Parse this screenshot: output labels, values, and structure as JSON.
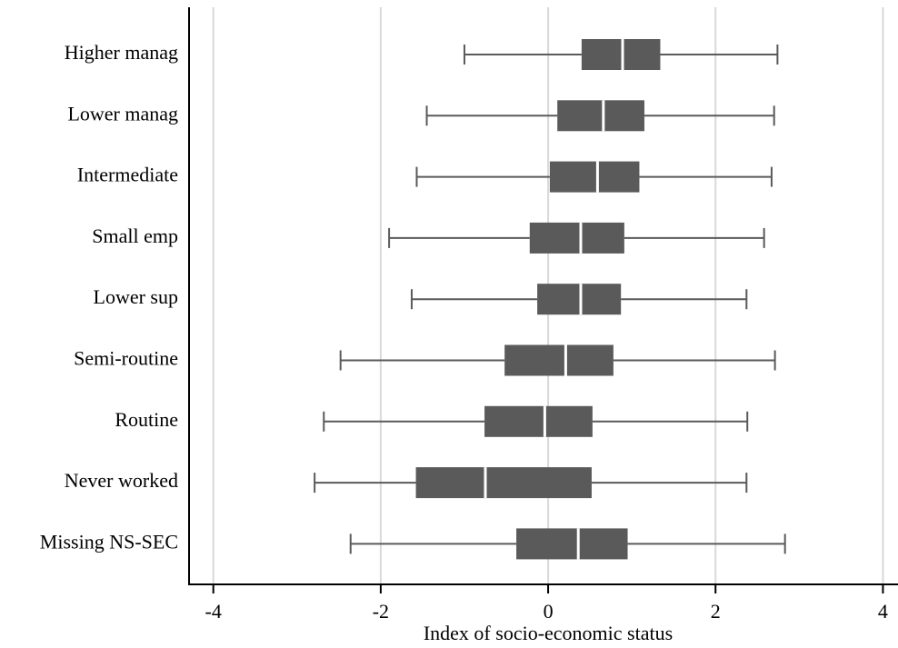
{
  "chart_data": {
    "type": "box",
    "x_label": "Index of socio-economic status",
    "categories": [
      "Higher manag",
      "Lower manag",
      "Intermediate",
      "Small emp",
      "Lower sup",
      "Semi-routine",
      "Routine",
      "Never worked",
      "Missing NS-SEC"
    ],
    "whisker_low": [
      -1.0,
      -1.45,
      -1.57,
      -1.9,
      -1.63,
      -2.48,
      -2.68,
      -2.79,
      -2.36
    ],
    "q1": [
      0.4,
      0.11,
      0.02,
      -0.22,
      -0.13,
      -0.52,
      -0.76,
      -1.58,
      -0.38
    ],
    "median": [
      0.89,
      0.66,
      0.59,
      0.39,
      0.39,
      0.21,
      -0.04,
      -0.75,
      0.36
    ],
    "q3": [
      1.34,
      1.15,
      1.09,
      0.91,
      0.87,
      0.78,
      0.53,
      0.52,
      0.95
    ],
    "whisker_high": [
      2.74,
      2.7,
      2.67,
      2.58,
      2.37,
      2.71,
      2.38,
      2.37,
      2.83
    ],
    "color": "#5a5a5a",
    "xlim": [
      -4.29,
      4.18
    ],
    "xticks": [
      -4,
      -2,
      0,
      2,
      4
    ],
    "grid": true
  }
}
